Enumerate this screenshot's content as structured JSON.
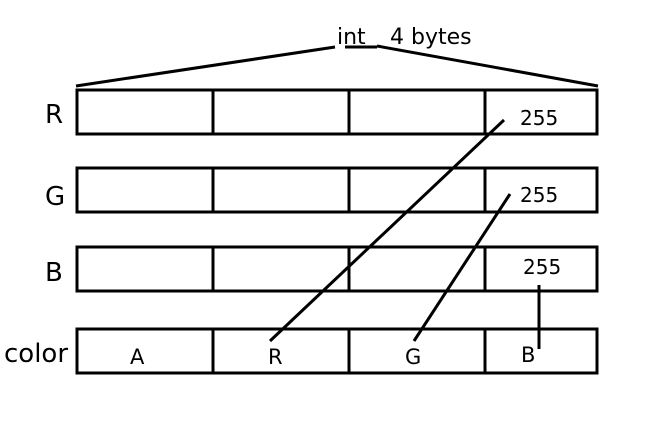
{
  "header": {
    "type_label": "int",
    "size_label": "4 bytes"
  },
  "rows": [
    {
      "label": "R",
      "values": [
        "",
        "",
        "",
        "255"
      ]
    },
    {
      "label": "G",
      "values": [
        "",
        "",
        "",
        "255"
      ]
    },
    {
      "label": "B",
      "values": [
        "",
        "",
        "",
        "255"
      ]
    }
  ],
  "color_row": {
    "label": "color",
    "channels": [
      {
        "text": "A",
        "color": "#000000"
      },
      {
        "text": "R",
        "color": "#e8302c"
      },
      {
        "text": "G",
        "color": "#22b24c"
      },
      {
        "text": "B",
        "color": "#3f48cc"
      }
    ]
  }
}
